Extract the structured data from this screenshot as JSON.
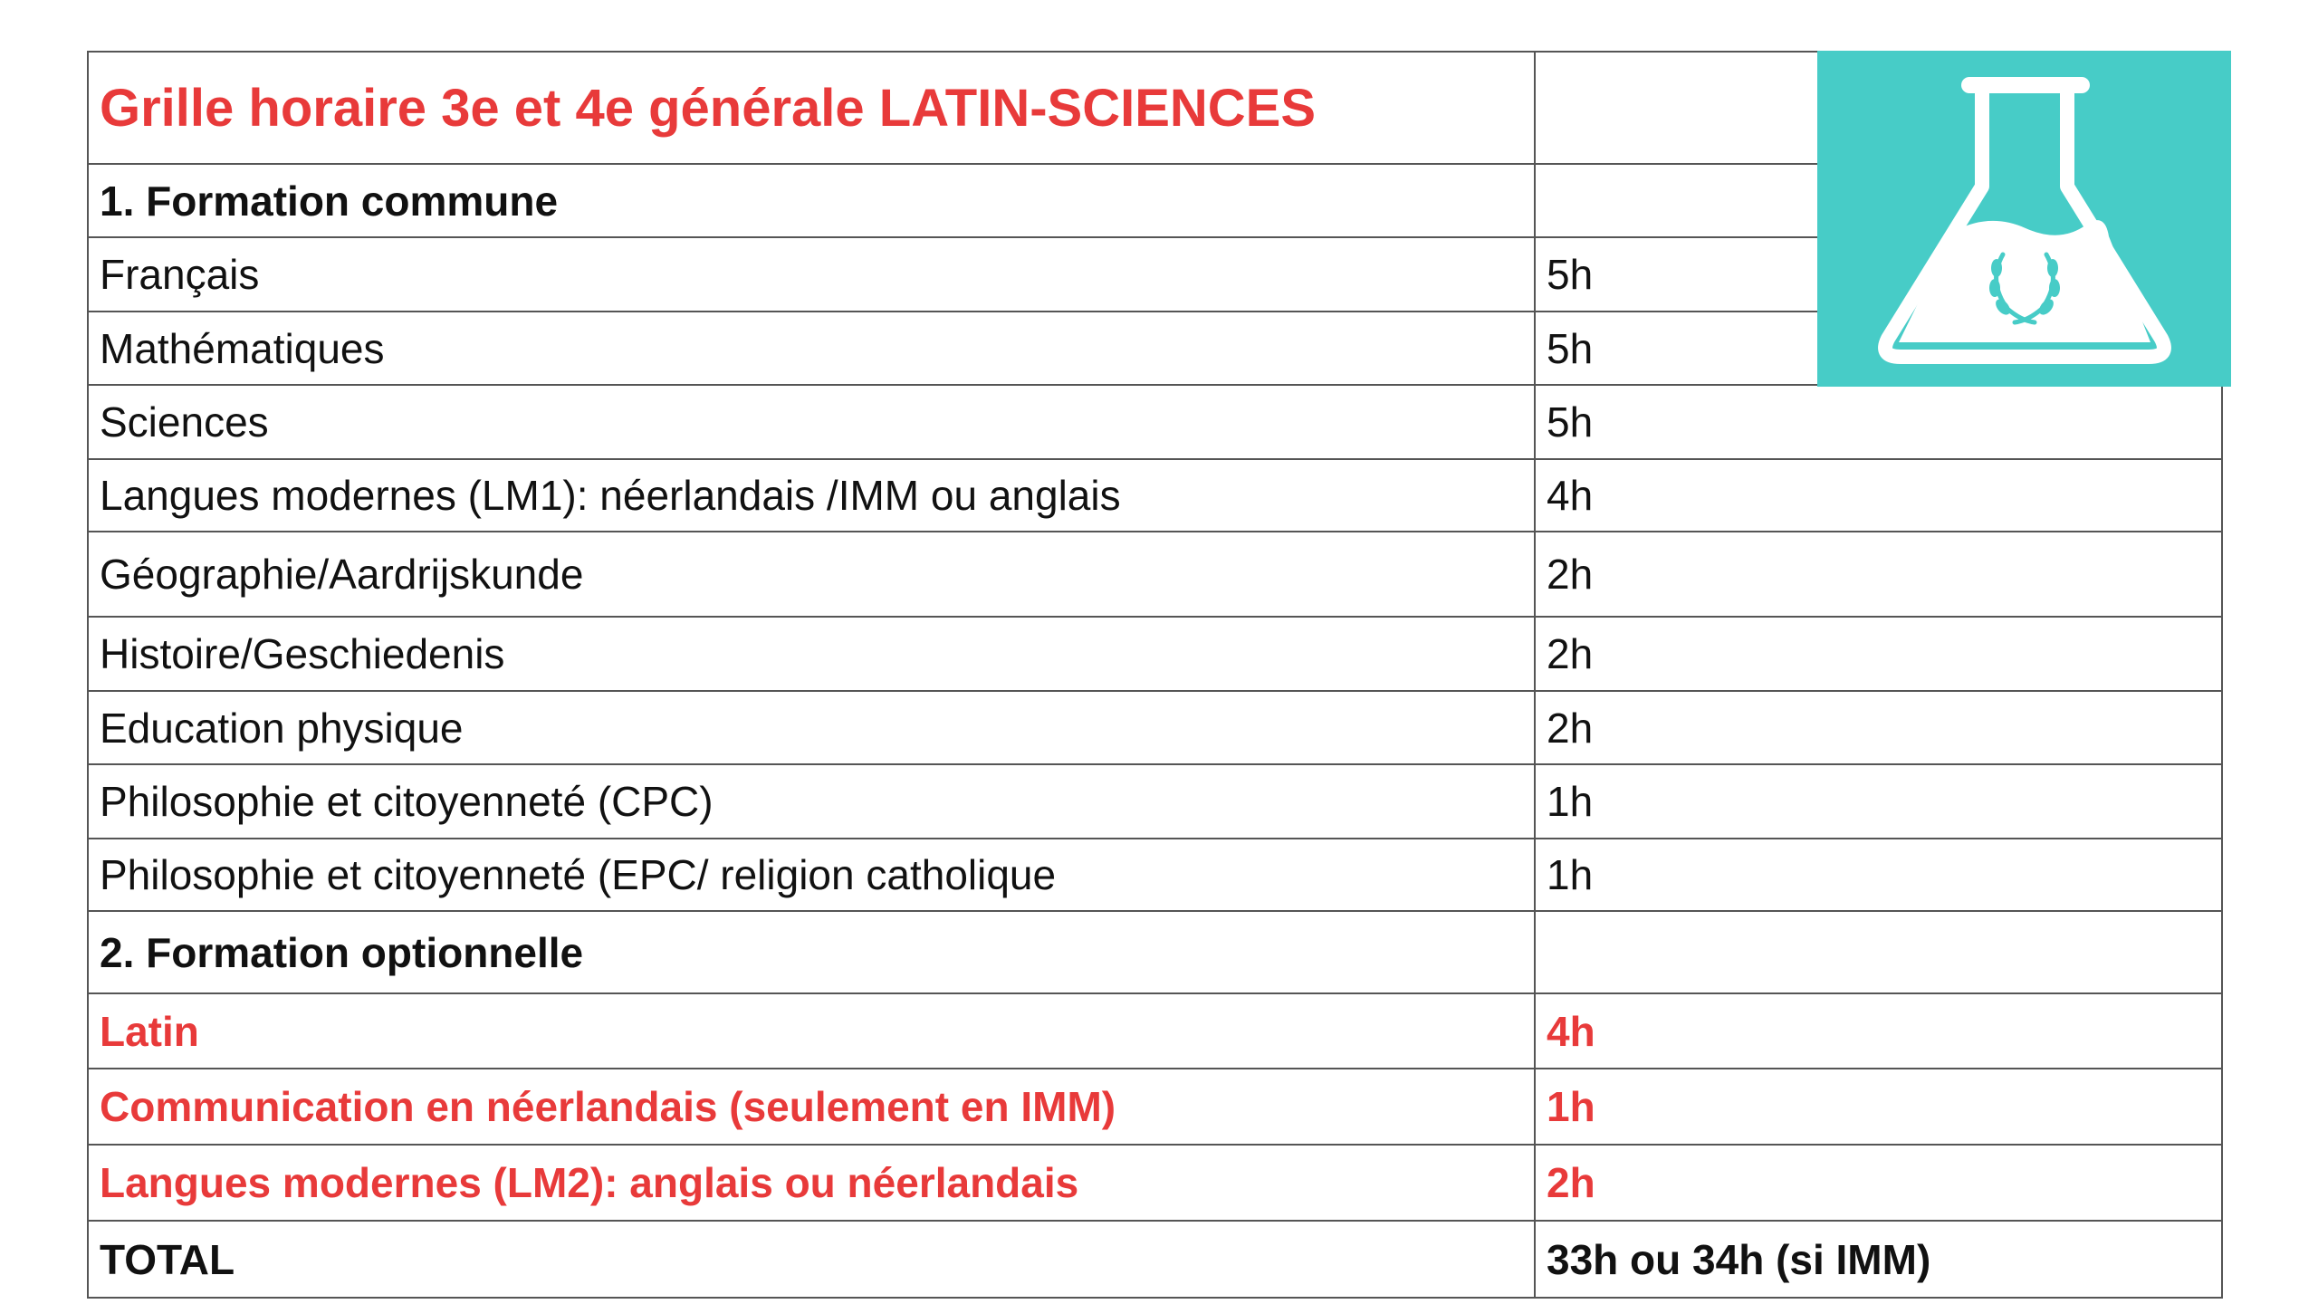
{
  "title": "Grille horaire 3e et 4e générale LATIN-SCIENCES",
  "table": {
    "rows": [
      [
        "1. Formation commune"
      ],
      [
        "Français",
        "5h"
      ],
      [
        "Mathématiques",
        "5h"
      ],
      [
        "Sciences",
        "5h"
      ],
      [
        "Langues modernes (LM1): néerlandais /IMM ou anglais",
        "4h"
      ],
      [
        "Géographie/Aardrijskunde",
        "2h"
      ],
      [
        "Histoire/Geschiedenis",
        "2h"
      ],
      [
        "Education physique",
        "2h"
      ],
      [
        "Philosophie et citoyenneté (CPC)",
        "1h"
      ],
      [
        "Philosophie et citoyenneté (EPC/ religion catholique",
        "1h"
      ],
      [
        "2. Formation optionnelle"
      ],
      [
        "Latin",
        "4h"
      ],
      [
        "Communication en néerlandais (seulement en IMM)",
        "1h"
      ],
      [
        "Langues modernes (LM2): anglais ou néerlandais",
        "2h"
      ],
      [
        "TOTAL",
        "33h ou 34h (si IMM)"
      ]
    ]
  }
}
